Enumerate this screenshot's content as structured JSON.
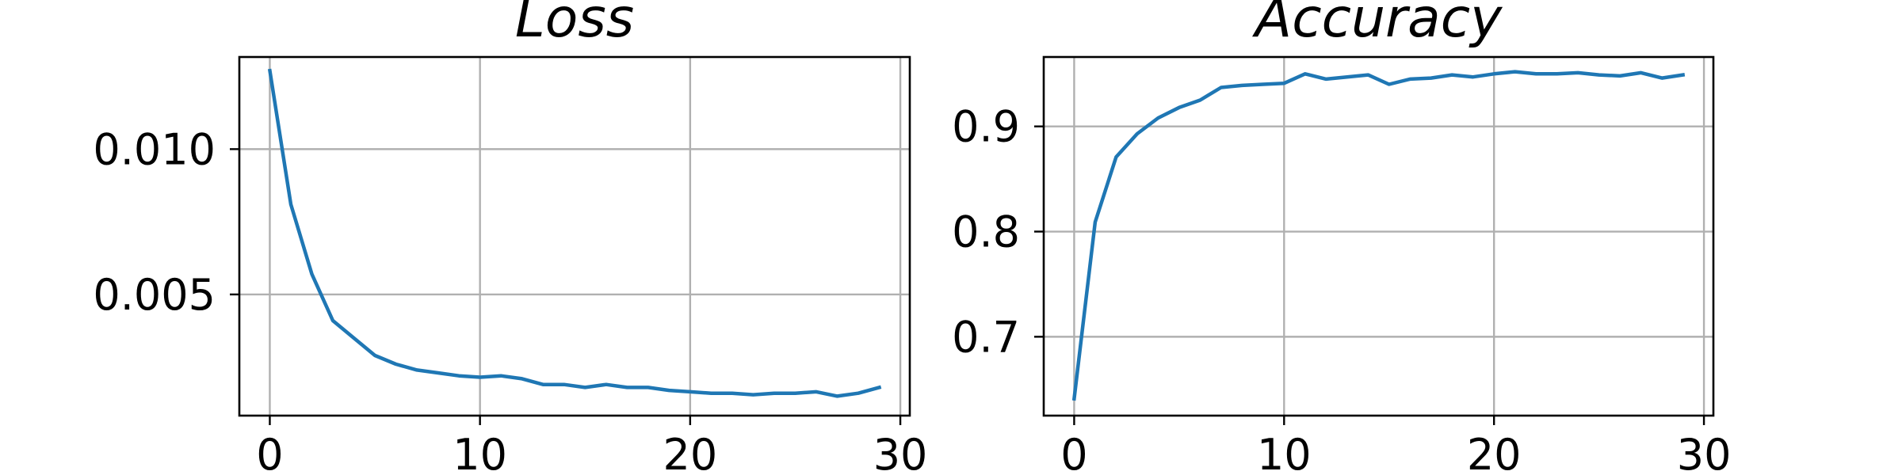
{
  "chart_data": [
    {
      "type": "line",
      "title": "Loss",
      "xlabel": "",
      "ylabel": "",
      "xlim": [
        -1.45,
        30.45
      ],
      "ylim": [
        0.00083,
        0.01317
      ],
      "xticks": [
        0,
        10,
        20,
        30
      ],
      "xtick_labels": [
        "0",
        "10",
        "20",
        "30"
      ],
      "yticks": [
        0.005,
        0.01
      ],
      "ytick_labels": [
        "0.005",
        "0.010"
      ],
      "grid": true,
      "series": [
        {
          "color": "#1f77b4",
          "x": [
            0,
            1,
            2,
            3,
            4,
            5,
            6,
            7,
            8,
            9,
            10,
            11,
            12,
            13,
            14,
            15,
            16,
            17,
            18,
            19,
            20,
            21,
            22,
            23,
            24,
            25,
            26,
            27,
            28,
            29
          ],
          "values": [
            0.0127,
            0.0081,
            0.0057,
            0.0041,
            0.0035,
            0.0029,
            0.0026,
            0.0024,
            0.0023,
            0.0022,
            0.00215,
            0.0022,
            0.0021,
            0.0019,
            0.0019,
            0.0018,
            0.0019,
            0.0018,
            0.0018,
            0.0017,
            0.00165,
            0.0016,
            0.0016,
            0.00155,
            0.0016,
            0.0016,
            0.00165,
            0.0015,
            0.0016,
            0.0018
          ]
        }
      ]
    },
    {
      "type": "line",
      "title": "Accuracy",
      "xlabel": "",
      "ylabel": "",
      "xlim": [
        -1.45,
        30.45
      ],
      "ylim": [
        0.625,
        0.966
      ],
      "xticks": [
        0,
        10,
        20,
        30
      ],
      "xtick_labels": [
        "0",
        "10",
        "20",
        "30"
      ],
      "yticks": [
        0.7,
        0.8,
        0.9
      ],
      "ytick_labels": [
        "0.7",
        "0.8",
        "0.9"
      ],
      "grid": true,
      "series": [
        {
          "color": "#1f77b4",
          "x": [
            0,
            1,
            2,
            3,
            4,
            5,
            6,
            7,
            8,
            9,
            10,
            11,
            12,
            13,
            14,
            15,
            16,
            17,
            18,
            19,
            20,
            21,
            22,
            23,
            24,
            25,
            26,
            27,
            28,
            29
          ],
          "values": [
            0.641,
            0.809,
            0.871,
            0.893,
            0.908,
            0.918,
            0.925,
            0.937,
            0.939,
            0.94,
            0.941,
            0.95,
            0.945,
            0.947,
            0.949,
            0.94,
            0.945,
            0.946,
            0.949,
            0.947,
            0.95,
            0.952,
            0.95,
            0.95,
            0.951,
            0.949,
            0.948,
            0.951,
            0.946,
            0.949
          ]
        }
      ]
    }
  ]
}
